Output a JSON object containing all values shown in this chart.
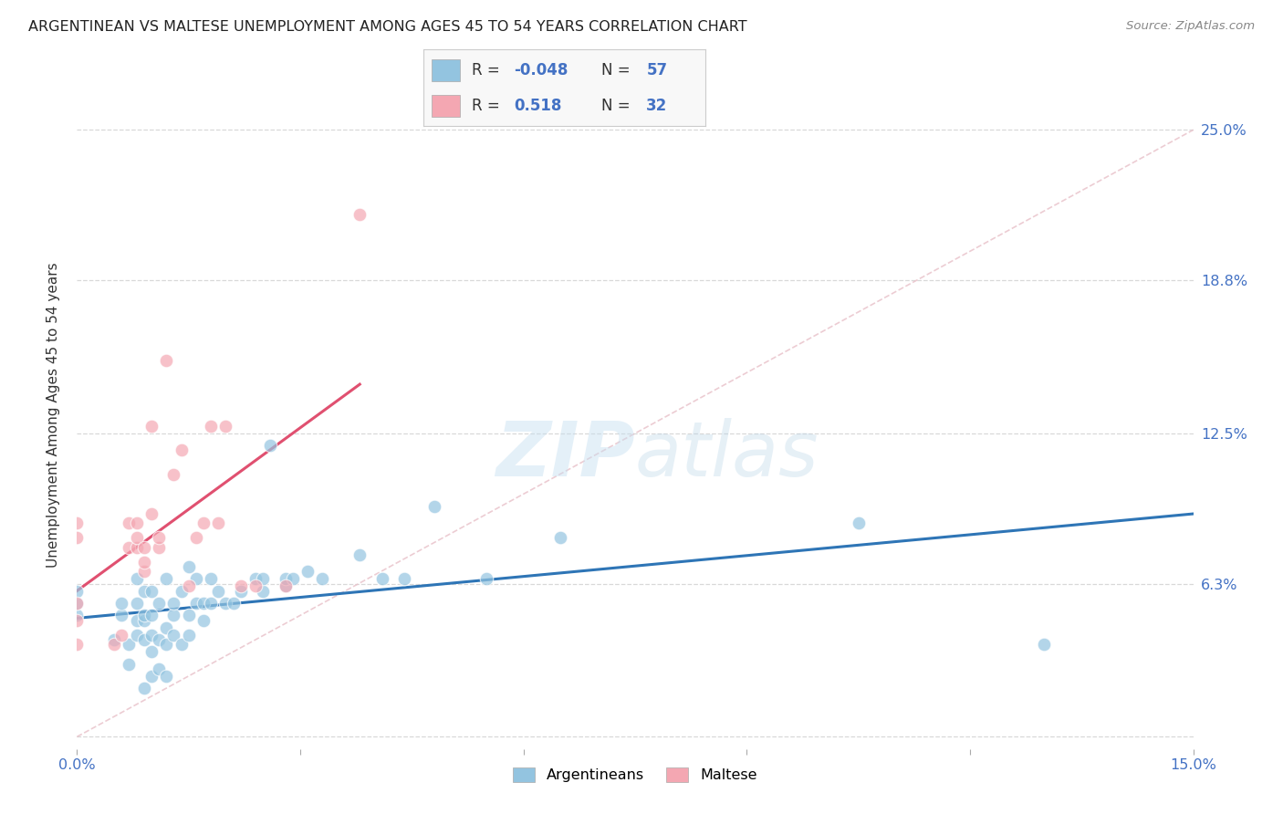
{
  "title": "ARGENTINEAN VS MALTESE UNEMPLOYMENT AMONG AGES 45 TO 54 YEARS CORRELATION CHART",
  "source": "Source: ZipAtlas.com",
  "ylabel": "Unemployment Among Ages 45 to 54 years",
  "xlim": [
    0.0,
    0.15
  ],
  "ylim": [
    -0.005,
    0.27
  ],
  "ytick_values": [
    0.0,
    0.063,
    0.125,
    0.188,
    0.25
  ],
  "ytick_labels": [
    "",
    "6.3%",
    "12.5%",
    "18.8%",
    "25.0%"
  ],
  "color_argentinean": "#93c4e0",
  "color_maltese": "#f4a7b2",
  "color_trend_argentinean": "#2e75b6",
  "color_trend_maltese": "#e05070",
  "color_diagonal": "#e8c0c8",
  "argentinean_x": [
    0.0,
    0.0,
    0.0,
    0.005,
    0.006,
    0.006,
    0.007,
    0.007,
    0.008,
    0.008,
    0.008,
    0.008,
    0.009,
    0.009,
    0.009,
    0.009,
    0.009,
    0.01,
    0.01,
    0.01,
    0.01,
    0.01,
    0.011,
    0.011,
    0.011,
    0.012,
    0.012,
    0.012,
    0.012,
    0.013,
    0.013,
    0.013,
    0.014,
    0.014,
    0.015,
    0.015,
    0.015,
    0.016,
    0.016,
    0.017,
    0.017,
    0.018,
    0.018,
    0.019,
    0.02,
    0.021,
    0.022,
    0.024,
    0.025,
    0.025,
    0.026,
    0.028,
    0.028,
    0.029,
    0.031,
    0.033,
    0.038,
    0.041,
    0.044,
    0.048,
    0.055,
    0.065,
    0.105,
    0.13
  ],
  "argentinean_y": [
    0.05,
    0.055,
    0.06,
    0.04,
    0.05,
    0.055,
    0.03,
    0.038,
    0.042,
    0.048,
    0.055,
    0.065,
    0.02,
    0.04,
    0.048,
    0.05,
    0.06,
    0.025,
    0.035,
    0.042,
    0.05,
    0.06,
    0.028,
    0.04,
    0.055,
    0.025,
    0.038,
    0.045,
    0.065,
    0.042,
    0.05,
    0.055,
    0.038,
    0.06,
    0.042,
    0.05,
    0.07,
    0.055,
    0.065,
    0.048,
    0.055,
    0.055,
    0.065,
    0.06,
    0.055,
    0.055,
    0.06,
    0.065,
    0.06,
    0.065,
    0.12,
    0.062,
    0.065,
    0.065,
    0.068,
    0.065,
    0.075,
    0.065,
    0.065,
    0.095,
    0.065,
    0.082,
    0.088,
    0.038
  ],
  "maltese_x": [
    0.0,
    0.0,
    0.0,
    0.0,
    0.0,
    0.005,
    0.006,
    0.007,
    0.007,
    0.008,
    0.008,
    0.008,
    0.009,
    0.009,
    0.009,
    0.01,
    0.01,
    0.011,
    0.011,
    0.012,
    0.013,
    0.014,
    0.015,
    0.016,
    0.017,
    0.018,
    0.019,
    0.02,
    0.022,
    0.024,
    0.028,
    0.038
  ],
  "maltese_y": [
    0.038,
    0.048,
    0.055,
    0.082,
    0.088,
    0.038,
    0.042,
    0.078,
    0.088,
    0.078,
    0.082,
    0.088,
    0.068,
    0.072,
    0.078,
    0.092,
    0.128,
    0.078,
    0.082,
    0.155,
    0.108,
    0.118,
    0.062,
    0.082,
    0.088,
    0.128,
    0.088,
    0.128,
    0.062,
    0.062,
    0.062,
    0.215
  ],
  "watermark": "ZIPatlas",
  "background_color": "#ffffff",
  "grid_color": "#d8d8d8"
}
